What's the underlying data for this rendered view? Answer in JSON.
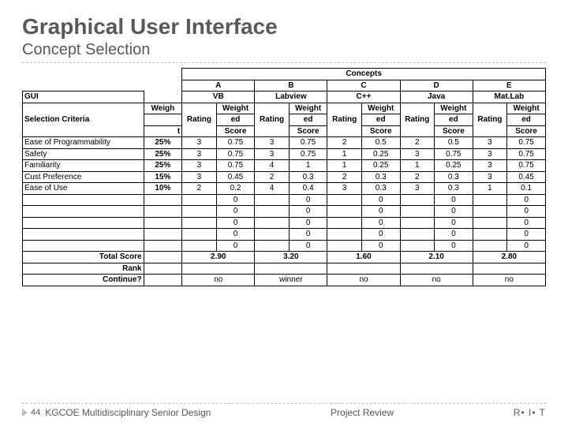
{
  "title": "Graphical User Interface",
  "subtitle": "Concept Selection",
  "header": {
    "concepts": "Concepts",
    "cols": [
      "A",
      "B",
      "C",
      "D",
      "E"
    ],
    "gui": "GUI",
    "names": [
      "VB",
      "Labview",
      "C++",
      "Java",
      "Mat.Lab"
    ],
    "selection_criteria": "Selection Criteria",
    "weight": "Weigh",
    "weight_tail": "t",
    "rating": "Rating",
    "weighted": "Weighted",
    "score": "Score"
  },
  "criteria": [
    {
      "label": "Ease of Programmability",
      "weight": "25%",
      "vals": [
        [
          "3",
          "0.75"
        ],
        [
          "3",
          "0.75"
        ],
        [
          "2",
          "0.5"
        ],
        [
          "2",
          "0.5"
        ],
        [
          "3",
          "0.75"
        ]
      ]
    },
    {
      "label": "Safety",
      "weight": "25%",
      "vals": [
        [
          "3",
          "0.75"
        ],
        [
          "3",
          "0.75"
        ],
        [
          "1",
          "0.25"
        ],
        [
          "3",
          "0.75"
        ],
        [
          "3",
          "0.75"
        ]
      ]
    },
    {
      "label": "Familiarity",
      "weight": "25%",
      "vals": [
        [
          "3",
          "0.75"
        ],
        [
          "4",
          "1"
        ],
        [
          "1",
          "0.25"
        ],
        [
          "1",
          "0.25"
        ],
        [
          "3",
          "0.75"
        ]
      ]
    },
    {
      "label": "Cust Preference",
      "weight": "15%",
      "vals": [
        [
          "3",
          "0.45"
        ],
        [
          "2",
          "0.3"
        ],
        [
          "2",
          "0.3"
        ],
        [
          "2",
          "0.3"
        ],
        [
          "3",
          "0.45"
        ]
      ]
    },
    {
      "label": "Ease of Use",
      "weight": "10%",
      "vals": [
        [
          "2",
          "0.2"
        ],
        [
          "4",
          "0.4"
        ],
        [
          "3",
          "0.3"
        ],
        [
          "3",
          "0.3"
        ],
        [
          "1",
          "0.1"
        ]
      ]
    }
  ],
  "blank_rows": 5,
  "totals": {
    "total_label": "Total Score",
    "rank_label": "Rank",
    "continue_label": "Continue?",
    "scores": [
      "2.90",
      "3.20",
      "1.60",
      "2.10",
      "2.80"
    ],
    "continue": [
      "no",
      "winner",
      "no",
      "no",
      "no"
    ]
  },
  "footer": {
    "page": "44",
    "left": "KGCOE Multidisciplinary Senior Design",
    "center": "Project Review",
    "right": "R• I• T"
  }
}
